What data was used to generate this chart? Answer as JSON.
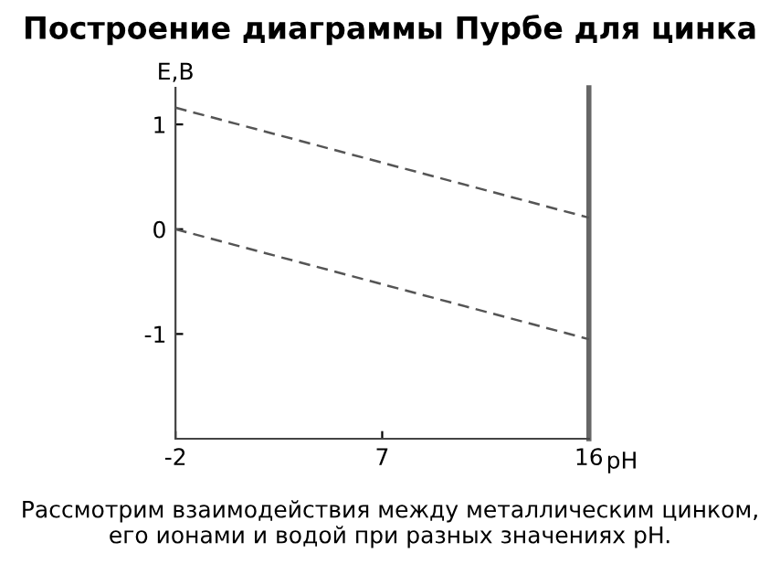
{
  "chart_data": {
    "type": "line",
    "title": "Построение диаграммы Пурбе для цинка",
    "xlabel": "pH",
    "ylabel": "E,B",
    "x": [
      -2,
      16
    ],
    "series": [
      {
        "values": [
          1.16,
          0.11
        ],
        "color": "#555555",
        "line_style": "dashed"
      },
      {
        "values": [
          0.0,
          -1.05
        ],
        "color": "#555555",
        "line_style": "dashed"
      }
    ],
    "xlim": [
      -2,
      16
    ],
    "xticks": [
      -2,
      7,
      16
    ],
    "ylim": [
      -2,
      1.35
    ],
    "yticks": [
      -1,
      0,
      1
    ],
    "grid": false,
    "legend": false,
    "marker": "none",
    "annotations": [
      "Рассмотрим взаимодействия между металлическим цинком, его ионами и водой при разных значениях pH."
    ]
  }
}
